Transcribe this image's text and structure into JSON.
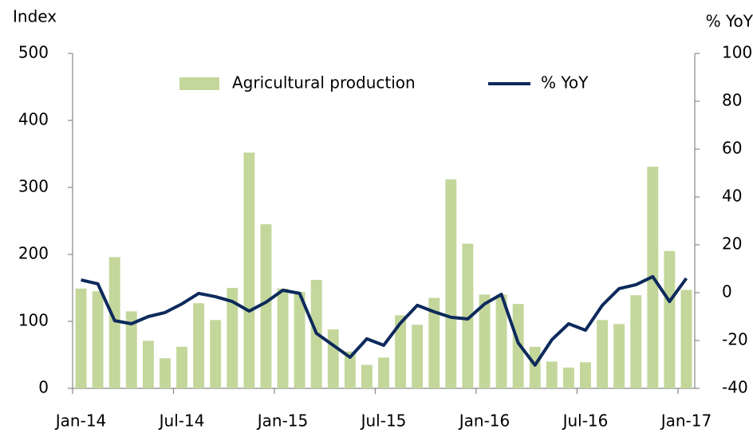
{
  "chart_data": {
    "type": "bar",
    "ylabel": "Index",
    "y2label": "% YoY",
    "categories": [
      "Jan-14",
      null,
      null,
      null,
      null,
      null,
      "Jul-14",
      null,
      null,
      null,
      null,
      null,
      "Jan-15",
      null,
      null,
      null,
      null,
      null,
      "Jul-15",
      null,
      null,
      null,
      null,
      null,
      "Jan-16",
      null,
      null,
      null,
      null,
      null,
      "Jul-16",
      null,
      null,
      null,
      null,
      null,
      "Jan-17"
    ],
    "series": [
      {
        "name": "Agricultural production",
        "type": "bar",
        "color": "#c4d79b",
        "values": [
          149,
          145,
          196,
          115,
          71,
          45,
          62,
          127,
          102,
          150,
          352,
          245,
          149,
          144,
          162,
          88,
          55,
          35,
          46,
          109,
          95,
          135,
          312,
          216,
          140,
          140,
          126,
          62,
          40,
          31,
          39,
          102,
          96,
          139,
          331,
          205,
          147
        ]
      },
      {
        "name": "% YoY",
        "type": "line",
        "axis": "y2",
        "color": "#0d2a5c",
        "values": [
          5.3,
          3.7,
          -11.7,
          -13,
          -10,
          -8.3,
          -4.7,
          -0.3,
          -1.7,
          -3.7,
          -7.7,
          -4,
          1,
          -0.3,
          -17,
          -22,
          -27,
          -19.3,
          -22,
          -12.7,
          -5.3,
          -8,
          -10.3,
          -11,
          -4.7,
          -0.7,
          -21,
          -30.3,
          -19.7,
          -13,
          -15.7,
          -5.3,
          1.7,
          3.3,
          6.7,
          -3.7,
          6
        ]
      }
    ],
    "ylim": [
      0,
      500
    ],
    "yticks": [
      0,
      100,
      200,
      300,
      400,
      500
    ],
    "y2lim": [
      -40,
      100
    ],
    "y2ticks": [
      -40,
      -20,
      0,
      20,
      40,
      60,
      80,
      100
    ],
    "grid": false,
    "legend": "top"
  }
}
